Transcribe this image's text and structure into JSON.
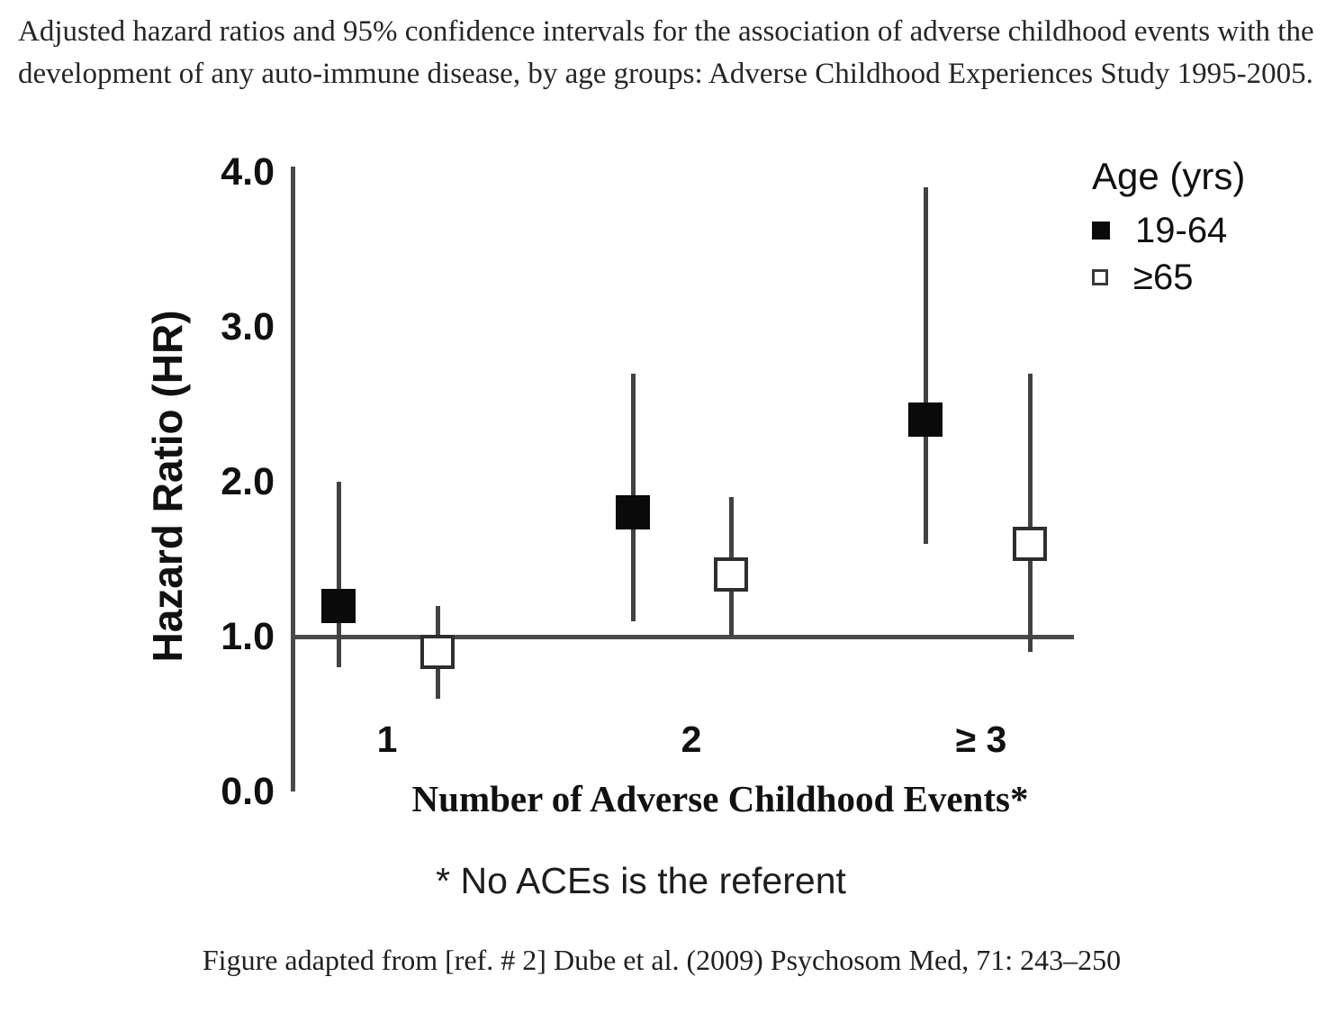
{
  "caption": "Adjusted hazard ratios and 95% confidence intervals for the association of adverse childhood events with the development of any auto-immune disease, by age groups: Adverse Childhood Experiences Study 1995-2005.",
  "citation": "Figure adapted from [ref. # 2] Dube et al. (2009) Psychosom Med, 71: 243–250",
  "chart_data": {
    "type": "scatter",
    "subtype": "point-estimate-with-95ci-forest-plot",
    "title": "",
    "xlabel": "Number of Adverse Childhood Events*",
    "ylabel": "Hazard Ratio (HR)",
    "footnote": "* No ACEs is the referent",
    "categories": [
      "1",
      "2",
      "≥ 3"
    ],
    "series": [
      {
        "name": "19-64",
        "marker": "filled-square",
        "color": "#0a0a0a",
        "hr": [
          1.2,
          1.8,
          2.4
        ],
        "ci_low": [
          0.8,
          1.1,
          1.6
        ],
        "ci_high": [
          2.0,
          2.7,
          3.9
        ]
      },
      {
        "name": "≥65",
        "marker": "open-square",
        "color": "#ffffff",
        "border_color": "#2e2e2e",
        "hr": [
          0.9,
          1.4,
          1.6
        ],
        "ci_low": [
          0.6,
          1.0,
          0.9
        ],
        "ci_high": [
          1.2,
          1.9,
          2.7
        ]
      }
    ],
    "y_ticks": [
      "4.0",
      "3.0",
      "2.0",
      "1.0",
      "0.0"
    ],
    "y_tick_values": [
      4.0,
      3.0,
      2.0,
      1.0,
      0.0
    ],
    "ylim": [
      0.0,
      4.0
    ],
    "reference_line": 1.0,
    "grid": false,
    "legend": {
      "title": "Age (yrs)",
      "position": "top-right"
    }
  }
}
